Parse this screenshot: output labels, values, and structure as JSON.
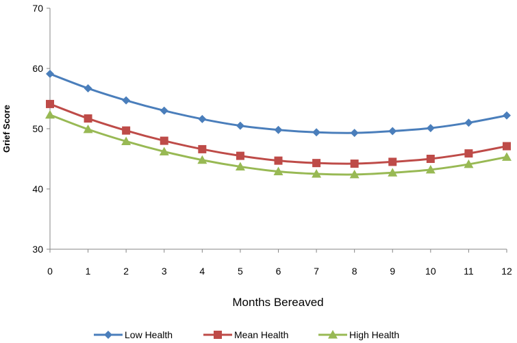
{
  "chart_data": {
    "type": "line",
    "title": "",
    "xlabel": "Months Bereaved",
    "ylabel": "Grief Score",
    "x": [
      0,
      1,
      2,
      3,
      4,
      5,
      6,
      7,
      8,
      9,
      10,
      11,
      12
    ],
    "ylim": [
      30,
      70
    ],
    "yticks": [
      30,
      40,
      50,
      60,
      70
    ],
    "grid": false,
    "legend_position": "bottom",
    "series": [
      {
        "name": "Low Health",
        "color": "#4a7ebb",
        "marker": "diamond",
        "values": [
          59.1,
          56.7,
          54.7,
          53.0,
          51.6,
          50.5,
          49.8,
          49.4,
          49.3,
          49.6,
          50.1,
          51.0,
          52.2
        ]
      },
      {
        "name": "Mean Health",
        "color": "#be4b48",
        "marker": "square",
        "values": [
          54.1,
          51.7,
          49.7,
          48.0,
          46.6,
          45.5,
          44.7,
          44.3,
          44.2,
          44.5,
          45.0,
          45.9,
          47.1
        ]
      },
      {
        "name": "High Health",
        "color": "#98b954",
        "marker": "triangle",
        "values": [
          52.3,
          49.9,
          47.9,
          46.2,
          44.8,
          43.7,
          42.9,
          42.5,
          42.4,
          42.7,
          43.2,
          44.1,
          45.3
        ]
      }
    ]
  }
}
